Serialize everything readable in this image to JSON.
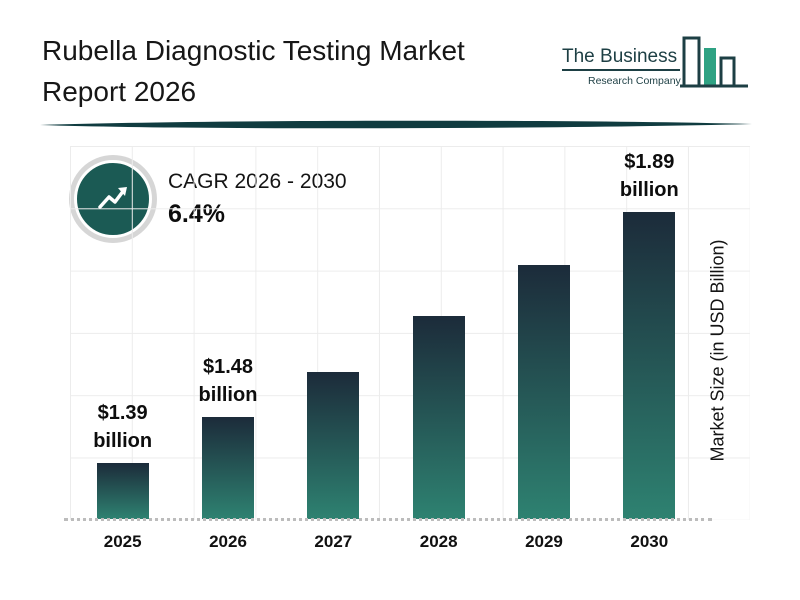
{
  "header": {
    "title_line1": "Rubella Diagnostic Testing Market",
    "title_line2": "Report 2026"
  },
  "logo": {
    "name_top": "The Business",
    "name_bottom": "Research Company"
  },
  "cagr": {
    "label": "CAGR 2026 - 2030",
    "value": "6.4%",
    "icon": "trend-up-arrow-icon"
  },
  "chart_data": {
    "type": "bar",
    "title": "Rubella Diagnostic Testing Market Report 2026",
    "categories": [
      "2025",
      "2026",
      "2027",
      "2028",
      "2029",
      "2030"
    ],
    "values": [
      1.39,
      1.48,
      1.57,
      1.68,
      1.78,
      1.89
    ],
    "bar_labels": [
      {
        "amount": "$1.39",
        "unit": "billion"
      },
      {
        "amount": "$1.48",
        "unit": "billion"
      },
      null,
      null,
      null,
      {
        "amount": "$1.89",
        "unit": "billion"
      }
    ],
    "xlabel": "",
    "ylabel": "Market Size (in USD Billion)",
    "unit": "USD Billion",
    "grid": true,
    "legend": false,
    "colors": {
      "bar_gradient_top": "#1c2b3a",
      "bar_gradient_bottom": "#2e8271",
      "accent_teal": "#15514c",
      "logo_teal": "#1d3f44",
      "logo_green": "#2ea283"
    }
  }
}
